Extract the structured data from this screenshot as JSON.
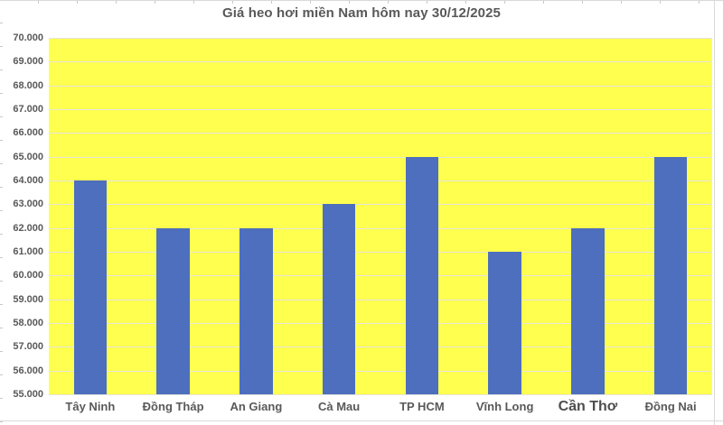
{
  "title": "Giá heo hơi miền Nam hôm nay 30/12/2025",
  "chart_data": {
    "type": "bar",
    "title": "Giá heo hơi miền Nam hôm nay 30/12/2025",
    "categories": [
      "Tây Ninh",
      "Đồng Tháp",
      "An Giang",
      "Cà Mau",
      "TP HCM",
      "Vĩnh Long",
      "Cần Thơ",
      "Đồng Nai"
    ],
    "values": [
      64000,
      62000,
      62000,
      63000,
      65000,
      61000,
      62000,
      65000
    ],
    "xlabel": "",
    "ylabel": "",
    "ylim": [
      55000,
      70000
    ],
    "y_tick_step": 1000,
    "y_tick_labels": [
      "70.000",
      "69.000",
      "68.000",
      "67.000",
      "66.000",
      "65.000",
      "64.000",
      "63.000",
      "62.000",
      "61.000",
      "60.000",
      "59.000",
      "58.000",
      "57.000",
      "56.000",
      "55.000"
    ],
    "grid": true,
    "legend": false,
    "emphasized_tick": "Cần Thơ",
    "colors": {
      "bar": "#4d6fbd",
      "plot_background": "#ffff4f",
      "gridline": "#e4e4de",
      "text": "#595959",
      "page_background": "#ffffff"
    },
    "layout": {
      "bar_width_fraction_of_slot": 0.4,
      "legend_position": "none"
    }
  }
}
